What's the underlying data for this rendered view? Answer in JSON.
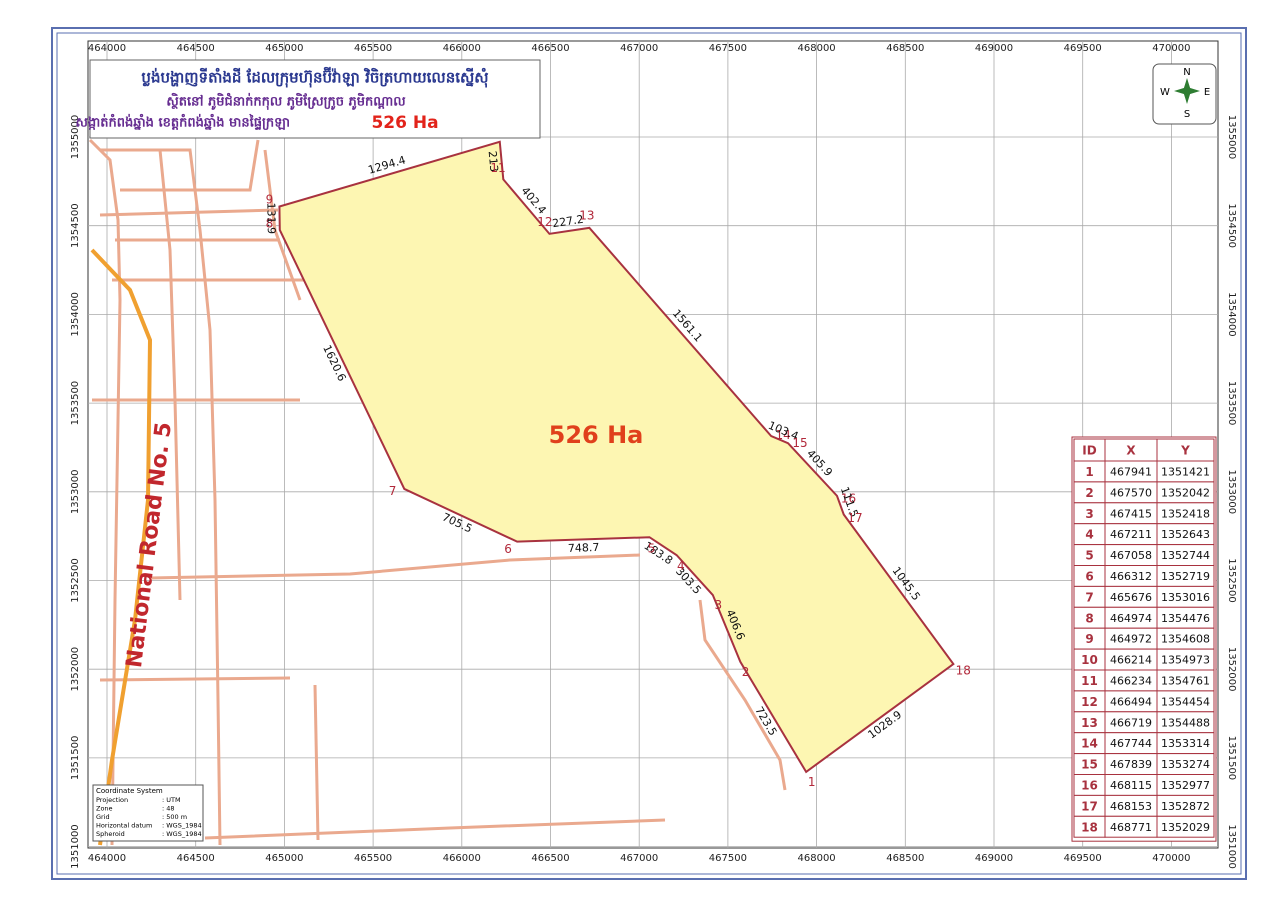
{
  "title": {
    "line1": "ប្លង់បង្ហាញទីតាំងដី ដែលក្រុមហ៊ុនប៊ីវ៉ាឡា វិចិត្រហាយលេនស្នើសុំ",
    "line2": "ស្ថិតនៅ ភូមិជំនាក់កកុល ភូមិស្រែក្រូច ភូមិកណ្ដាល",
    "line3": "សង្កាត់កំពង់ឆ្នាំង ខេត្តកំពង់ឆ្នាំង មានផ្ទៃក្រឡា",
    "area": "526 Ha"
  },
  "map": {
    "xticks": [
      464000,
      464500,
      465000,
      465500,
      466000,
      466500,
      467000,
      467500,
      468000,
      468500,
      469000,
      469500,
      470000
    ],
    "yticks": [
      1351000,
      1351500,
      1352000,
      1352500,
      1353000,
      1353500,
      1354000,
      1354500,
      1355000
    ],
    "area_label": "526 Ha",
    "road_label": "National Road No. 5",
    "edge_lengths": [
      "723.5",
      "406.6",
      "303.5",
      "183.8",
      "748.7",
      "705.5",
      "1620.6",
      "131.9",
      "1294.4",
      "213",
      "402.4",
      "227.2",
      "1561.1",
      "103.4",
      "405.9",
      "111.5",
      "1045.5",
      "1028.9"
    ]
  },
  "compass": {
    "n": "N",
    "s": "S",
    "e": "E",
    "w": "W"
  },
  "table": {
    "header": [
      "ID",
      "X",
      "Y"
    ],
    "rows": [
      [
        1,
        467941,
        1351421
      ],
      [
        2,
        467570,
        1352042
      ],
      [
        3,
        467415,
        1352418
      ],
      [
        4,
        467211,
        1352643
      ],
      [
        5,
        467058,
        1352744
      ],
      [
        6,
        466312,
        1352719
      ],
      [
        7,
        465676,
        1353016
      ],
      [
        8,
        464974,
        1354476
      ],
      [
        9,
        464972,
        1354608
      ],
      [
        10,
        466214,
        1354973
      ],
      [
        11,
        466234,
        1354761
      ],
      [
        12,
        466494,
        1354454
      ],
      [
        13,
        466719,
        1354488
      ],
      [
        14,
        467744,
        1353314
      ],
      [
        15,
        467839,
        1353274
      ],
      [
        16,
        468115,
        1352977
      ],
      [
        17,
        468153,
        1352872
      ],
      [
        18,
        468771,
        1352029
      ]
    ]
  },
  "coordinate_system": {
    "title": "Coordinate System",
    "rows": [
      [
        "Projection",
        ": UTM"
      ],
      [
        "Zone",
        ": 48"
      ],
      [
        "Grid",
        ": 500 m"
      ],
      [
        "Horizontal datum",
        ": WGS_1984"
      ],
      [
        "Spheroid",
        ": WGS_1984"
      ]
    ]
  }
}
